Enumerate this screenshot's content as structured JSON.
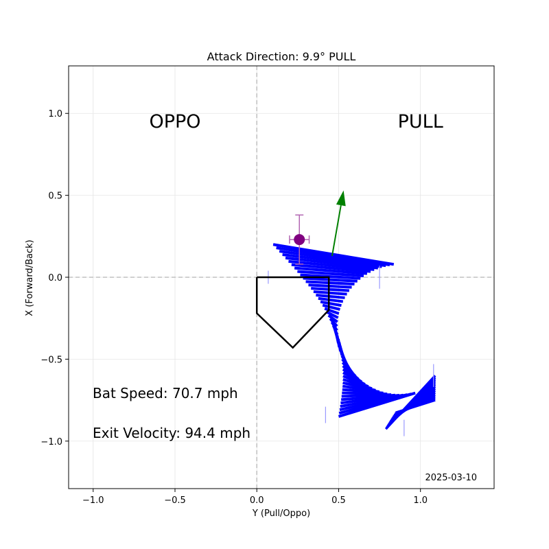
{
  "chart_data": {
    "type": "line",
    "title": "Attack Direction: 9.9° PULL",
    "xlabel": "Y (Pull/Oppo)",
    "ylabel": "X (Forward/Back)",
    "xlim": [
      -1.15,
      1.45
    ],
    "ylim": [
      -1.29,
      1.29
    ],
    "x_ticks": [
      -1.0,
      -0.5,
      0.0,
      0.5,
      1.0
    ],
    "x_tick_labels": [
      "−1.0",
      "−0.5",
      "0.0",
      "0.5",
      "1.0"
    ],
    "y_ticks": [
      -1.0,
      -0.5,
      0.0,
      0.5,
      1.0
    ],
    "y_tick_labels": [
      "−1.0",
      "−0.5",
      "0.0",
      "0.5",
      "1.0"
    ],
    "grid": true,
    "region_labels": [
      {
        "text": "OPPO",
        "x": -0.5,
        "y": 0.95
      },
      {
        "text": "PULL",
        "x": 1.0,
        "y": 0.95
      }
    ],
    "annotations": {
      "bat_speed": "Bat Speed: 70.7 mph",
      "exit_velocity": "Exit Velocity: 94.4 mph",
      "date": "2025-03-10"
    },
    "home_plate": [
      [
        0,
        0
      ],
      [
        0.44,
        0
      ],
      [
        0.44,
        -0.2
      ],
      [
        0.22,
        -0.43
      ],
      [
        0,
        -0.22
      ],
      [
        0,
        0
      ]
    ],
    "contact_point": {
      "x": 0.26,
      "y": 0.23,
      "xerr": 0.06,
      "yerr": 0.15
    },
    "attack_direction": {
      "x0": 0.46,
      "y0": 0.13,
      "x1": 0.53,
      "y1": 0.53
    },
    "bat_path": {
      "handle_start": {
        "x": 0.1,
        "y": 0.2
      },
      "handle_end": {
        "x": 0.5,
        "y": -0.85
      },
      "handle_curve": 0.18,
      "head_center": {
        "x": 0.87,
        "y": -0.32
      },
      "head_radius_x": 0.38,
      "head_radius_y": 0.4,
      "head_theta_start": 95,
      "head_theta_end": 285,
      "tail_point": {
        "x": 1.09,
        "y": -0.6
      },
      "segments": 52
    },
    "colors": {
      "bat": "#0000ff",
      "contact": "#800080",
      "arrow": "#008000",
      "plate": "#000000",
      "grid": "#e5e5e5",
      "zero_lines": "#c0c0c0"
    }
  }
}
